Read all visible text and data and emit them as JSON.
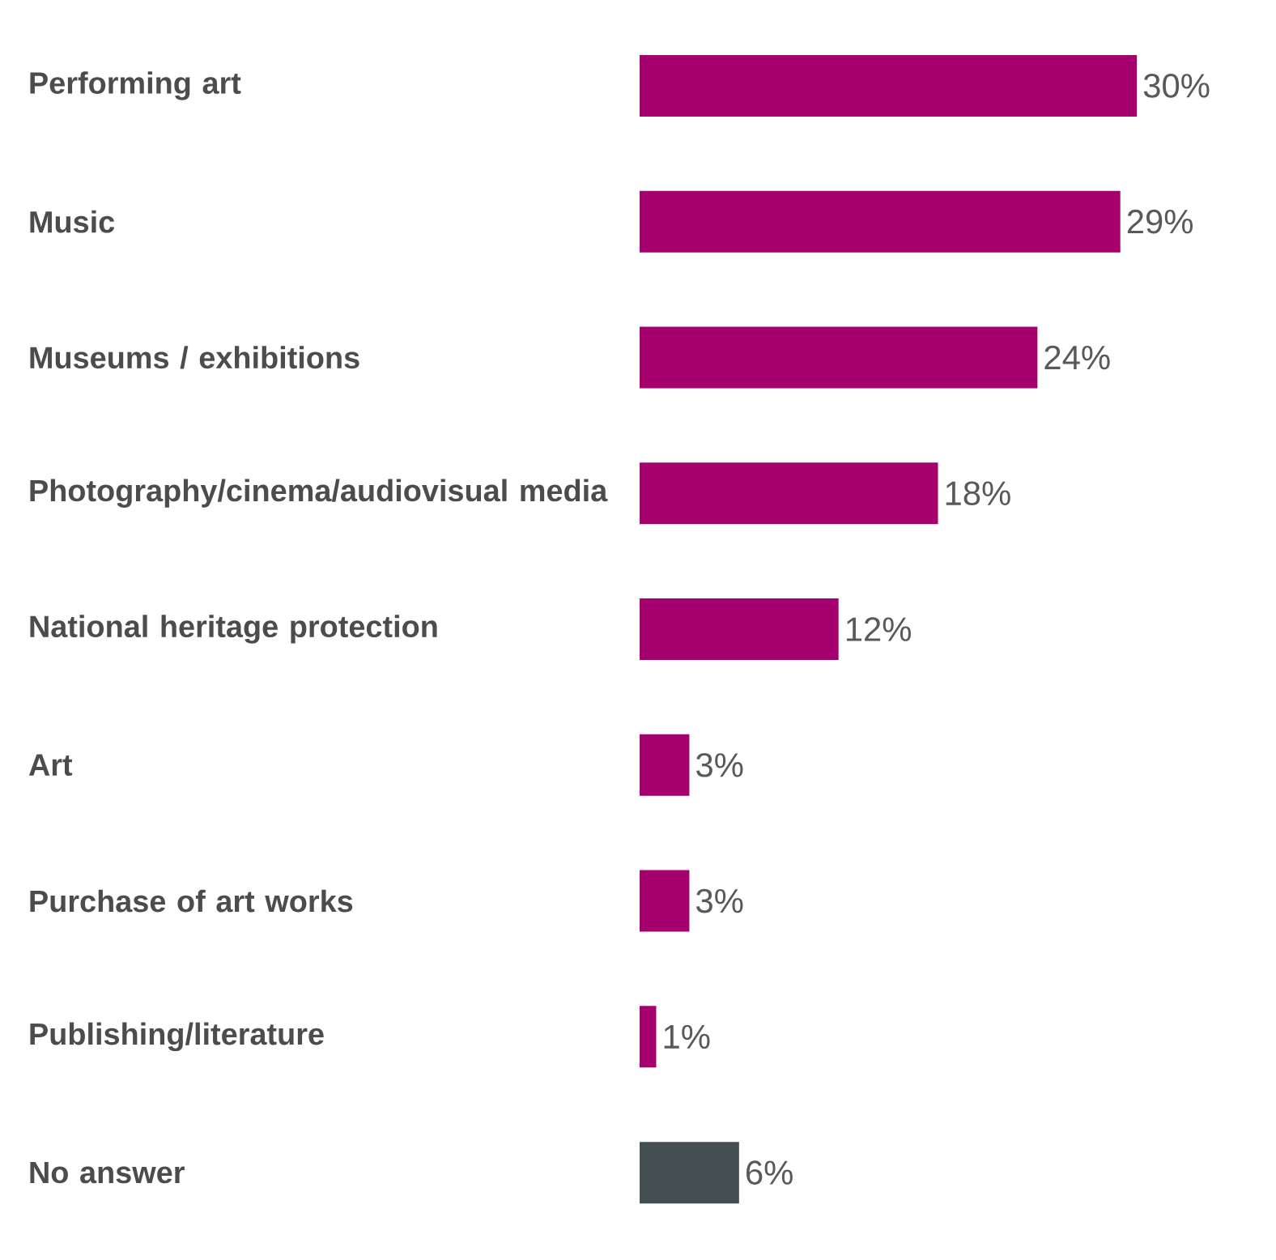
{
  "chart_data": {
    "type": "bar",
    "orientation": "horizontal",
    "categories": [
      "Performing art",
      "Music",
      "Museums / exhibitions",
      "Photography/cinema/audiovisual media",
      "National heritage protection",
      "Art",
      "Purchase of art works",
      "Publishing/literature",
      "No answer"
    ],
    "values": [
      30,
      29,
      24,
      18,
      12,
      3,
      3,
      1,
      6
    ],
    "value_labels": [
      "30%",
      "29%",
      "24%",
      "18%",
      "12%",
      "3%",
      "3%",
      "1%",
      "6%"
    ],
    "colors": [
      "#a5006e",
      "#a5006e",
      "#a5006e",
      "#a5006e",
      "#a5006e",
      "#a5006e",
      "#a5006e",
      "#a5006e",
      "#454f51"
    ]
  }
}
